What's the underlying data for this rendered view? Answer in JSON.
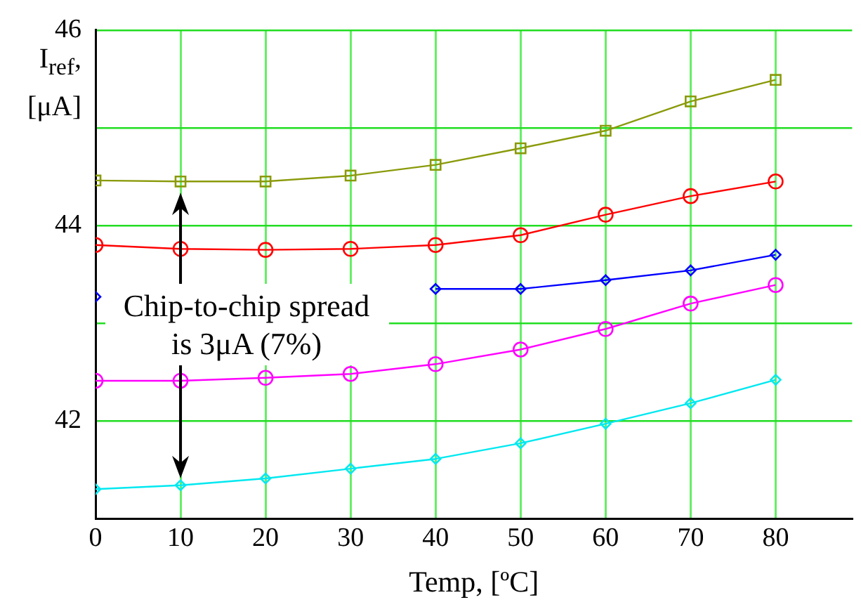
{
  "chart_data": {
    "type": "line",
    "xlabel": "Temp, [ºC]",
    "ylabel": "I$_{ref}$, [μA]",
    "x": [
      0,
      10,
      20,
      30,
      40,
      50,
      60,
      70,
      80
    ],
    "xlim": [
      0,
      89
    ],
    "xticks": [
      0,
      10,
      20,
      30,
      40,
      50,
      60,
      70,
      80
    ],
    "ylim": [
      41,
      46
    ],
    "yticks": [
      {
        "value": 41,
        "label": null
      },
      42,
      {
        "value": 43,
        "label": null
      },
      44,
      {
        "value": 45,
        "label": null
      },
      46
    ],
    "grid": true,
    "legend": false,
    "line_style": "solid",
    "series": [
      {
        "color": "#8a9a0a",
        "marker": "square",
        "values": [
          44.46,
          44.45,
          44.45,
          44.51,
          44.62,
          44.79,
          44.97,
          45.27,
          45.49
        ]
      },
      {
        "color": "#ff0000",
        "marker": "circle",
        "values": [
          43.8,
          43.76,
          43.75,
          43.76,
          43.8,
          43.9,
          44.11,
          44.3,
          44.45
        ]
      },
      {
        "color": "#0000ff",
        "marker": "diamond",
        "values": [
          43.27,
          null,
          null,
          null,
          43.35,
          43.35,
          43.44,
          43.54,
          43.7
        ]
      },
      {
        "color": "#ff00ff",
        "marker": "circle",
        "values": [
          42.41,
          42.41,
          42.44,
          42.48,
          42.58,
          42.73,
          42.94,
          43.2,
          43.39
        ]
      },
      {
        "color": "#00e8f0",
        "marker": "diamond",
        "values": [
          41.3,
          41.34,
          41.41,
          41.51,
          41.61,
          41.77,
          41.97,
          42.18,
          42.42
        ]
      }
    ],
    "annotations": [
      "Chip-to-chip spread is 3μA (7%)"
    ]
  }
}
